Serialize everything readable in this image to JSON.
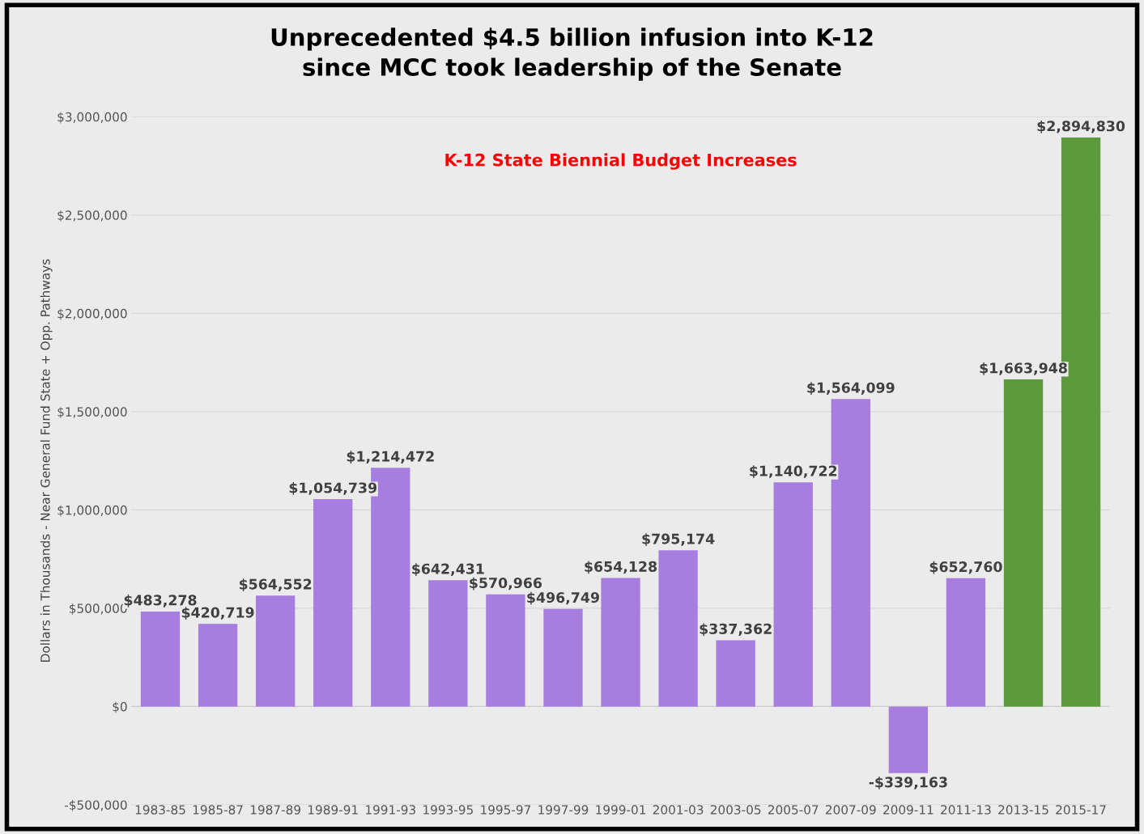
{
  "chart_data": {
    "type": "bar",
    "title": "Unprecedented $4.5 billion infusion into K-12\nsince MCC took leadership of the Senate",
    "subtitle": "K-12 State Biennial Budget Increases",
    "ylabel": "Dollars in Thousands - Near General Fund State + Opp. Pathways",
    "categories": [
      "1983-85",
      "1985-87",
      "1987-89",
      "1989-91",
      "1991-93",
      "1993-95",
      "1995-97",
      "1997-99",
      "1999-01",
      "2001-03",
      "2003-05",
      "2005-07",
      "2007-09",
      "2009-11",
      "2011-13",
      "2013-15",
      "2015-17"
    ],
    "values": [
      483278,
      420719,
      564552,
      1054739,
      1214472,
      642431,
      570966,
      496749,
      654128,
      795174,
      337362,
      1140722,
      1564099,
      -339163,
      652760,
      1663948,
      2894830
    ],
    "value_labels": [
      "$483,278",
      "$420,719",
      "$564,552",
      "$1,054,739",
      "$1,214,472",
      "$642,431",
      "$570,966",
      "$496,749",
      "$654,128",
      "$795,174",
      "$337,362",
      "$1,140,722",
      "$1,564,099",
      "-$339,163",
      "$652,760",
      "$1,663,948",
      "$2,894,830"
    ],
    "colors": [
      "#a77ee0",
      "#a77ee0",
      "#a77ee0",
      "#a77ee0",
      "#a77ee0",
      "#a77ee0",
      "#a77ee0",
      "#a77ee0",
      "#a77ee0",
      "#a77ee0",
      "#a77ee0",
      "#a77ee0",
      "#a77ee0",
      "#a77ee0",
      "#a77ee0",
      "#5c9a3c",
      "#5c9a3c"
    ],
    "ylim": [
      -500000,
      3000000
    ],
    "yticks": [
      {
        "value": -500000,
        "label": "-$500,000"
      },
      {
        "value": 0,
        "label": "$0"
      },
      {
        "value": 500000,
        "label": "$500,000"
      },
      {
        "value": 1000000,
        "label": "$1,000,000"
      },
      {
        "value": 1500000,
        "label": "$1,500,000"
      },
      {
        "value": 2000000,
        "label": "$2,000,000"
      },
      {
        "value": 2500000,
        "label": "$2,500,000"
      },
      {
        "value": 3000000,
        "label": "$3,000,000"
      }
    ],
    "grid": "y",
    "legend": false
  }
}
